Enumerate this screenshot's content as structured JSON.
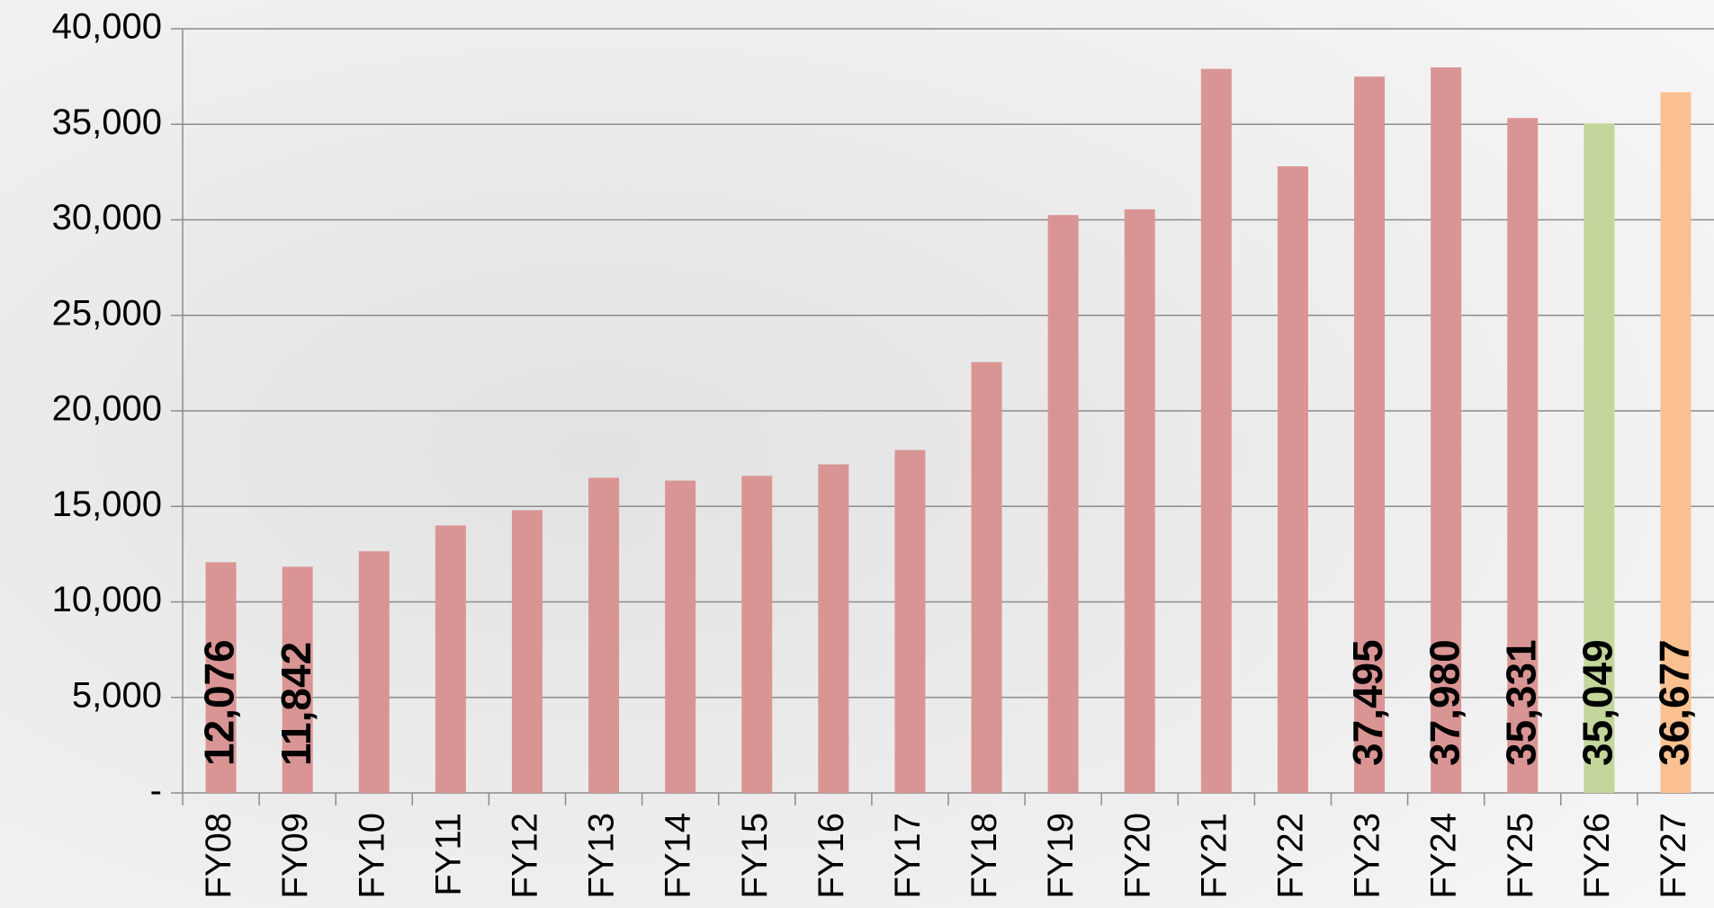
{
  "chart_data": {
    "type": "bar",
    "categories": [
      "FY08",
      "FY09",
      "FY10",
      "FY11",
      "FY12",
      "FY13",
      "FY14",
      "FY15",
      "FY16",
      "FY17",
      "FY18",
      "FY19",
      "FY20",
      "FY21",
      "FY22",
      "FY23",
      "FY24",
      "FY25",
      "FY26",
      "FY27"
    ],
    "values": [
      12076,
      11842,
      12650,
      14000,
      14800,
      16500,
      16350,
      16600,
      17200,
      17950,
      22550,
      30250,
      30550,
      37900,
      32800,
      37495,
      37980,
      35331,
      35049,
      36677
    ],
    "value_labels": [
      "12,076",
      "11,842",
      null,
      null,
      null,
      null,
      null,
      null,
      null,
      null,
      null,
      null,
      null,
      null,
      null,
      "37,495",
      "37,980",
      "35,331",
      "35,049",
      "36,677"
    ],
    "colors": [
      "#d99594",
      "#d99594",
      "#d99594",
      "#d99594",
      "#d99594",
      "#d99594",
      "#d99594",
      "#d99594",
      "#d99594",
      "#d99594",
      "#d99594",
      "#d99594",
      "#d99594",
      "#d99594",
      "#d99594",
      "#d99594",
      "#d99594",
      "#d99594",
      "#c3d69b",
      "#fac090"
    ],
    "ylim": [
      0,
      40000
    ],
    "yticks": [
      {
        "value": 0,
        "label": "-"
      },
      {
        "value": 5000,
        "label": "5,000"
      },
      {
        "value": 10000,
        "label": "10,000"
      },
      {
        "value": 15000,
        "label": "15,000"
      },
      {
        "value": 20000,
        "label": "20,000"
      },
      {
        "value": 25000,
        "label": "25,000"
      },
      {
        "value": 30000,
        "label": "30,000"
      },
      {
        "value": 35000,
        "label": "35,000"
      },
      {
        "value": 40000,
        "label": "40,000"
      }
    ],
    "grid": true
  }
}
